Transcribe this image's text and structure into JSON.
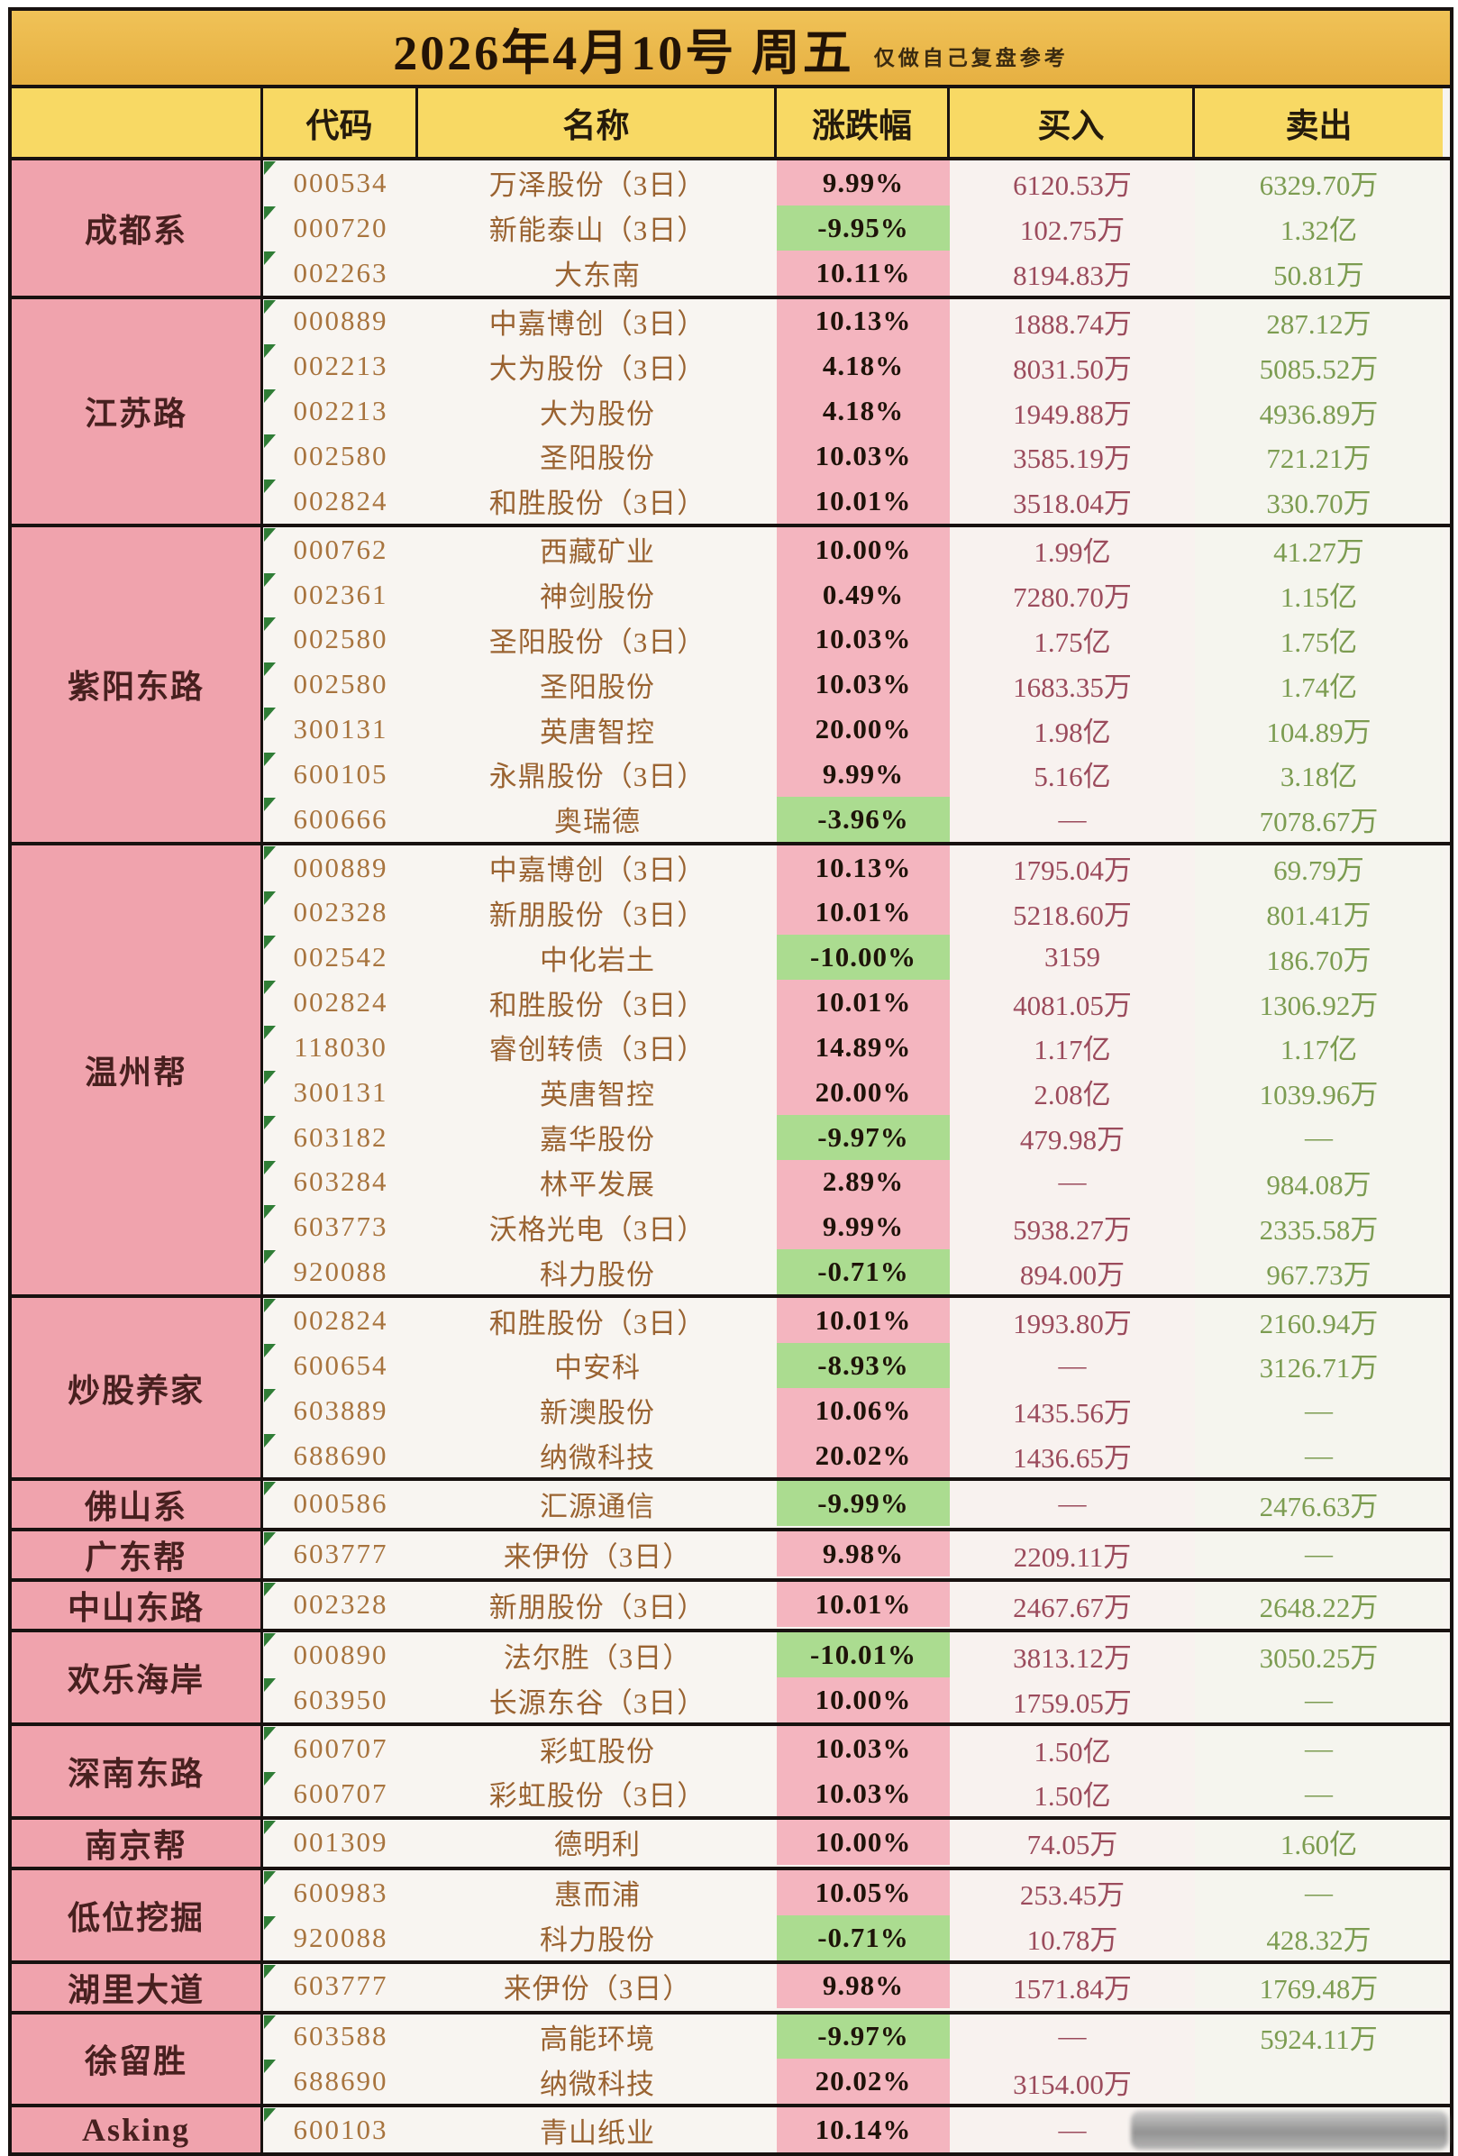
{
  "title": {
    "date": "2026年4月10号  周五",
    "note": "仅做自己复盘参考"
  },
  "columns": {
    "code": "代码",
    "name": "名称",
    "change": "涨跌幅",
    "buy": "买入",
    "sell": "卖出"
  },
  "colors": {
    "title_bg": "#ecb84c",
    "header_bg": "#f8d964",
    "group_bg": "#f0a3ad",
    "change_up_bg": "#f4b5bf",
    "change_down_bg": "#abdc90",
    "code_text": "#a8743e",
    "buy_text": "#9b4b5c",
    "sell_text": "#7c9c51"
  },
  "groups": [
    {
      "label": "成都系",
      "rows": [
        {
          "code": "000534",
          "name": "万泽股份（3日）",
          "change": "9.99%",
          "buy": "6120.53万",
          "sell": "6329.70万"
        },
        {
          "code": "000720",
          "name": "新能泰山（3日）",
          "change": "-9.95%",
          "buy": "102.75万",
          "sell": "1.32亿"
        },
        {
          "code": "002263",
          "name": "大东南",
          "change": "10.11%",
          "buy": "8194.83万",
          "sell": "50.81万"
        }
      ]
    },
    {
      "label": "江苏路",
      "rows": [
        {
          "code": "000889",
          "name": "中嘉博创（3日）",
          "change": "10.13%",
          "buy": "1888.74万",
          "sell": "287.12万"
        },
        {
          "code": "002213",
          "name": "大为股份（3日）",
          "change": "4.18%",
          "buy": "8031.50万",
          "sell": "5085.52万"
        },
        {
          "code": "002213",
          "name": "大为股份",
          "change": "4.18%",
          "buy": "1949.88万",
          "sell": "4936.89万"
        },
        {
          "code": "002580",
          "name": "圣阳股份",
          "change": "10.03%",
          "buy": "3585.19万",
          "sell": "721.21万"
        },
        {
          "code": "002824",
          "name": "和胜股份（3日）",
          "change": "10.01%",
          "buy": "3518.04万",
          "sell": "330.70万"
        }
      ]
    },
    {
      "label": "紫阳东路",
      "rows": [
        {
          "code": "000762",
          "name": "西藏矿业",
          "change": "10.00%",
          "buy": "1.99亿",
          "sell": "41.27万"
        },
        {
          "code": "002361",
          "name": "神剑股份",
          "change": "0.49%",
          "buy": "7280.70万",
          "sell": "1.15亿"
        },
        {
          "code": "002580",
          "name": "圣阳股份（3日）",
          "change": "10.03%",
          "buy": "1.75亿",
          "sell": "1.75亿"
        },
        {
          "code": "002580",
          "name": "圣阳股份",
          "change": "10.03%",
          "buy": "1683.35万",
          "sell": "1.74亿"
        },
        {
          "code": "300131",
          "name": "英唐智控",
          "change": "20.00%",
          "buy": "1.98亿",
          "sell": "104.89万"
        },
        {
          "code": "600105",
          "name": "永鼎股份（3日）",
          "change": "9.99%",
          "buy": "5.16亿",
          "sell": "3.18亿"
        },
        {
          "code": "600666",
          "name": "奥瑞德",
          "change": "-3.96%",
          "buy": "—",
          "sell": "7078.67万"
        }
      ]
    },
    {
      "label": "温州帮",
      "rows": [
        {
          "code": "000889",
          "name": "中嘉博创（3日）",
          "change": "10.13%",
          "buy": "1795.04万",
          "sell": "69.79万"
        },
        {
          "code": "002328",
          "name": "新朋股份（3日）",
          "change": "10.01%",
          "buy": "5218.60万",
          "sell": "801.41万"
        },
        {
          "code": "002542",
          "name": "中化岩土",
          "change": "-10.00%",
          "buy": "3159",
          "sell": "186.70万"
        },
        {
          "code": "002824",
          "name": "和胜股份（3日）",
          "change": "10.01%",
          "buy": "4081.05万",
          "sell": "1306.92万"
        },
        {
          "code": "118030",
          "name": "睿创转债（3日）",
          "change": "14.89%",
          "buy": "1.17亿",
          "sell": "1.17亿"
        },
        {
          "code": "300131",
          "name": "英唐智控",
          "change": "20.00%",
          "buy": "2.08亿",
          "sell": "1039.96万"
        },
        {
          "code": "603182",
          "name": "嘉华股份",
          "change": "-9.97%",
          "buy": "479.98万",
          "sell": "—"
        },
        {
          "code": "603284",
          "name": "林平发展",
          "change": "2.89%",
          "buy": "—",
          "sell": "984.08万"
        },
        {
          "code": "603773",
          "name": "沃格光电（3日）",
          "change": "9.99%",
          "buy": "5938.27万",
          "sell": "2335.58万"
        },
        {
          "code": "920088",
          "name": "科力股份",
          "change": "-0.71%",
          "buy": "894.00万",
          "sell": "967.73万"
        }
      ]
    },
    {
      "label": "炒股养家",
      "rows": [
        {
          "code": "002824",
          "name": "和胜股份（3日）",
          "change": "10.01%",
          "buy": "1993.80万",
          "sell": "2160.94万"
        },
        {
          "code": "600654",
          "name": "中安科",
          "change": "-8.93%",
          "buy": "—",
          "sell": "3126.71万"
        },
        {
          "code": "603889",
          "name": "新澳股份",
          "change": "10.06%",
          "buy": "1435.56万",
          "sell": "—"
        },
        {
          "code": "688690",
          "name": "纳微科技",
          "change": "20.02%",
          "buy": "1436.65万",
          "sell": "—"
        }
      ]
    },
    {
      "label": "佛山系",
      "rows": [
        {
          "code": "000586",
          "name": "汇源通信",
          "change": "-9.99%",
          "buy": "—",
          "sell": "2476.63万"
        }
      ]
    },
    {
      "label": "广东帮",
      "rows": [
        {
          "code": "603777",
          "name": "来伊份（3日）",
          "change": "9.98%",
          "buy": "2209.11万",
          "sell": "—"
        }
      ]
    },
    {
      "label": "中山东路",
      "rows": [
        {
          "code": "002328",
          "name": "新朋股份（3日）",
          "change": "10.01%",
          "buy": "2467.67万",
          "sell": "2648.22万"
        }
      ]
    },
    {
      "label": "欢乐海岸",
      "rows": [
        {
          "code": "000890",
          "name": "法尔胜（3日）",
          "change": "-10.01%",
          "buy": "3813.12万",
          "sell": "3050.25万"
        },
        {
          "code": "603950",
          "name": "长源东谷（3日）",
          "change": "10.00%",
          "buy": "1759.05万",
          "sell": "—"
        }
      ]
    },
    {
      "label": "深南东路",
      "rows": [
        {
          "code": "600707",
          "name": "彩虹股份",
          "change": "10.03%",
          "buy": "1.50亿",
          "sell": "—"
        },
        {
          "code": "600707",
          "name": "彩虹股份（3日）",
          "change": "10.03%",
          "buy": "1.50亿",
          "sell": "—"
        }
      ]
    },
    {
      "label": "南京帮",
      "rows": [
        {
          "code": "001309",
          "name": "德明利",
          "change": "10.00%",
          "buy": "74.05万",
          "sell": "1.60亿"
        }
      ]
    },
    {
      "label": "低位挖掘",
      "rows": [
        {
          "code": "600983",
          "name": "惠而浦",
          "change": "10.05%",
          "buy": "253.45万",
          "sell": "—"
        },
        {
          "code": "920088",
          "name": "科力股份",
          "change": "-0.71%",
          "buy": "10.78万",
          "sell": "428.32万"
        }
      ]
    },
    {
      "label": "湖里大道",
      "rows": [
        {
          "code": "603777",
          "name": "来伊份（3日）",
          "change": "9.98%",
          "buy": "1571.84万",
          "sell": "1769.48万"
        }
      ]
    },
    {
      "label": "徐留胜",
      "rows": [
        {
          "code": "603588",
          "name": "高能环境",
          "change": "-9.97%",
          "buy": "—",
          "sell": "5924.11万"
        },
        {
          "code": "688690",
          "name": "纳微科技",
          "change": "20.02%",
          "buy": "3154.00万",
          "sell": ""
        }
      ]
    },
    {
      "label": "Asking",
      "rows": [
        {
          "code": "600103",
          "name": "青山纸业",
          "change": "10.14%",
          "buy": "—",
          "sell": "",
          "smudge": true
        }
      ]
    }
  ]
}
